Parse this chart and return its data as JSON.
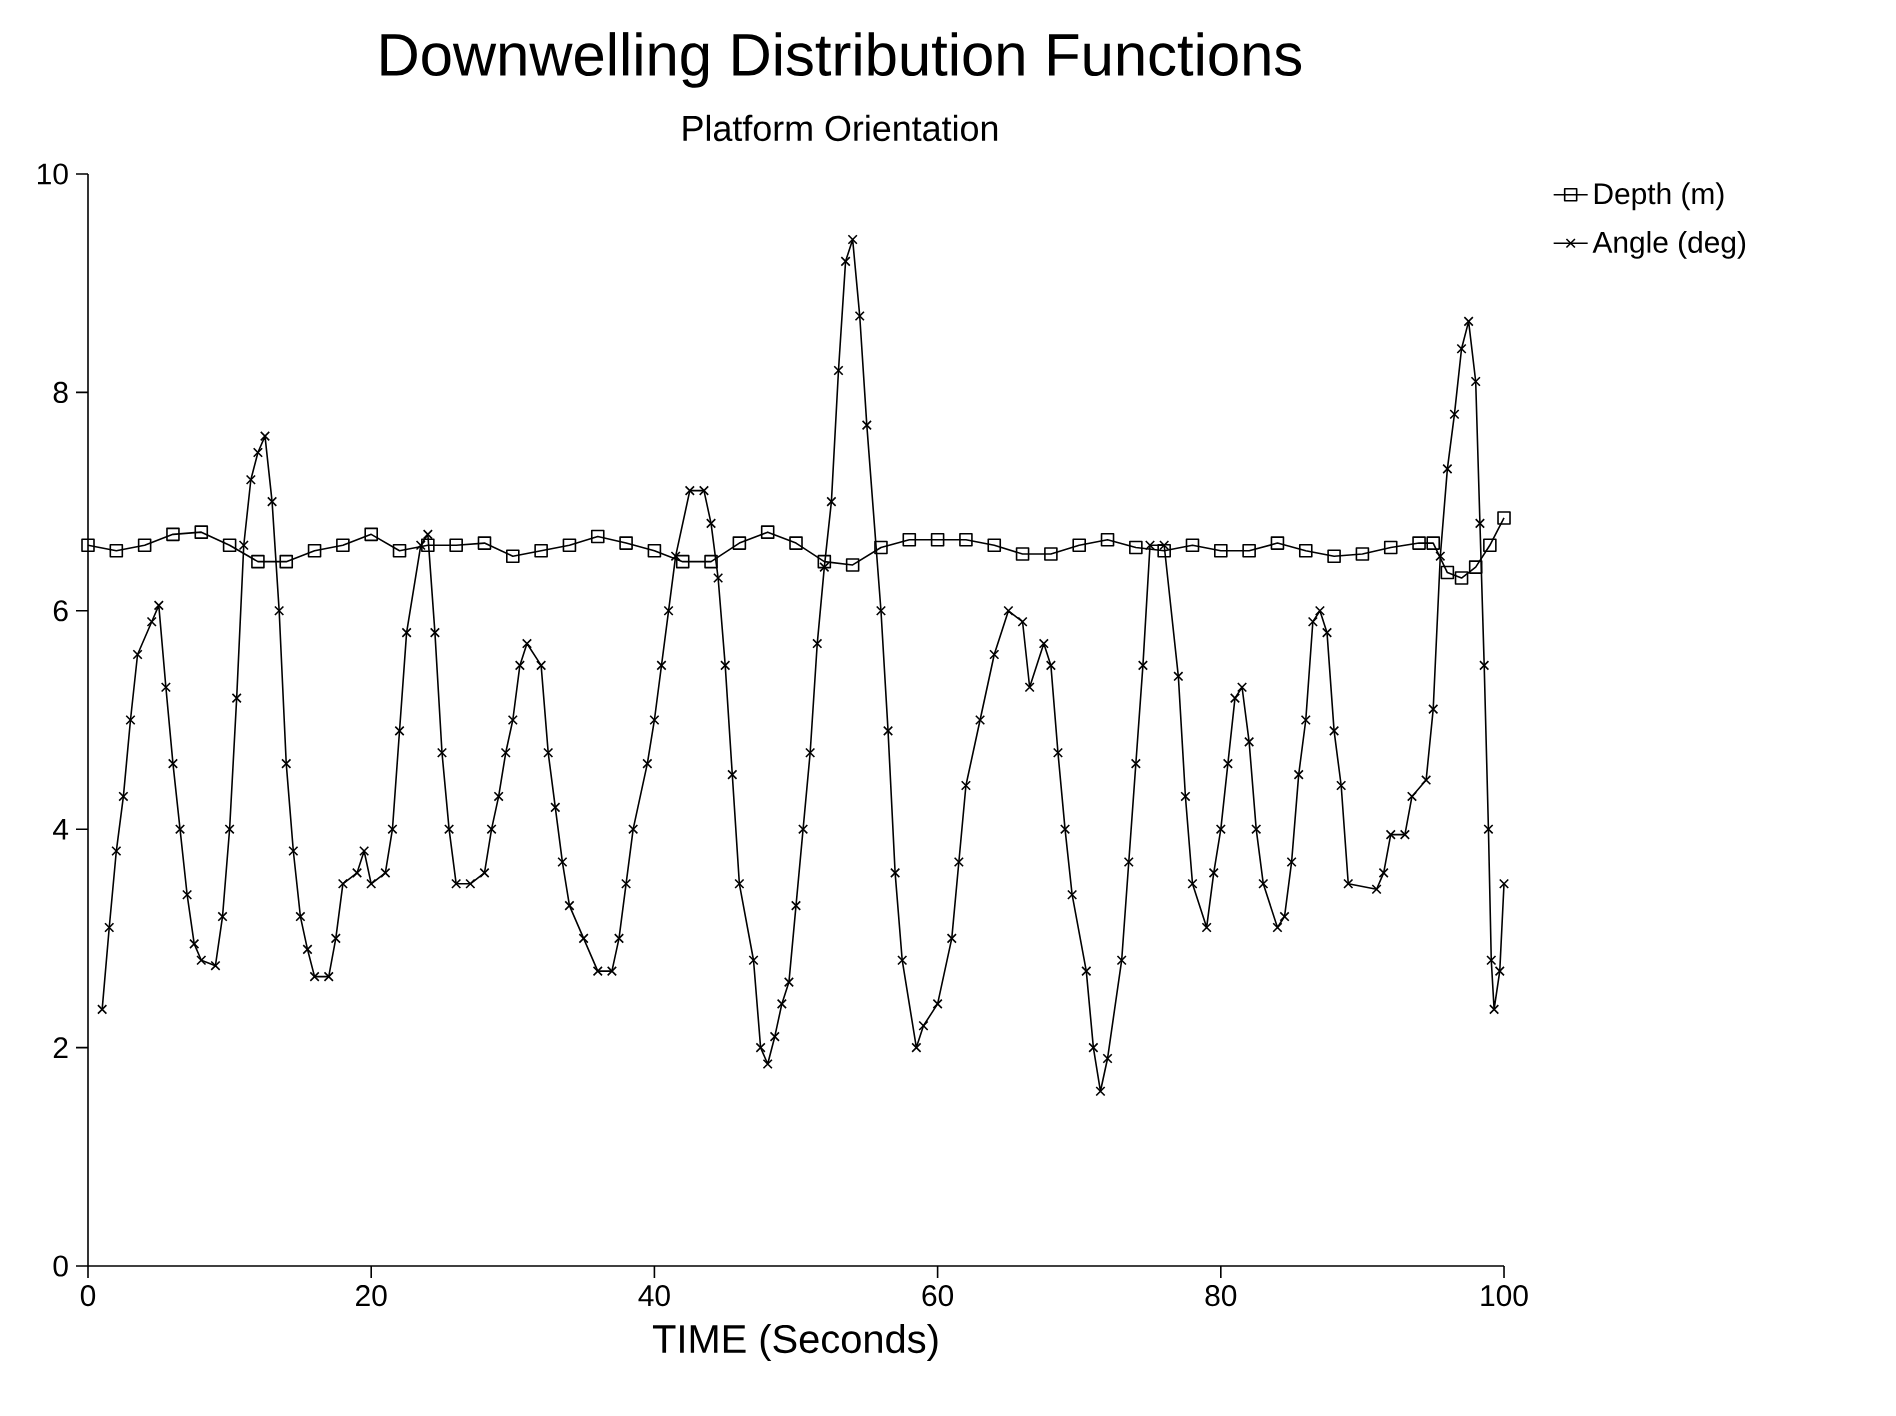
{
  "chart_data": {
    "type": "line",
    "title": "Downwelling Distribution Functions",
    "subtitle": "Platform Orientation",
    "xlabel": "TIME (Seconds)",
    "xlim": [
      0,
      100
    ],
    "ylim": [
      0,
      10
    ],
    "xticks": [
      0,
      20,
      40,
      60,
      80,
      100
    ],
    "yticks": [
      0,
      2,
      4,
      6,
      8,
      10
    ],
    "grid": false,
    "legend": "top right",
    "series": [
      {
        "name": "Depth (m)",
        "color": "#000000",
        "marker": "square",
        "x": [
          0,
          2,
          4,
          6,
          8,
          10,
          12,
          14,
          16,
          18,
          20,
          22,
          24,
          26,
          28,
          30,
          32,
          34,
          36,
          38,
          40,
          42,
          44,
          46,
          48,
          50,
          52,
          54,
          56,
          58,
          60,
          62,
          64,
          66,
          68,
          70,
          72,
          74,
          76,
          78,
          80,
          82,
          84,
          86,
          88,
          90,
          92,
          94,
          95,
          96,
          97,
          98,
          99,
          100
        ],
        "values": [
          6.6,
          6.55,
          6.6,
          6.7,
          6.72,
          6.6,
          6.45,
          6.45,
          6.55,
          6.6,
          6.7,
          6.55,
          6.6,
          6.6,
          6.62,
          6.5,
          6.55,
          6.6,
          6.68,
          6.62,
          6.55,
          6.45,
          6.45,
          6.62,
          6.72,
          6.62,
          6.45,
          6.42,
          6.58,
          6.65,
          6.65,
          6.65,
          6.6,
          6.52,
          6.52,
          6.6,
          6.65,
          6.58,
          6.55,
          6.6,
          6.55,
          6.55,
          6.62,
          6.55,
          6.5,
          6.52,
          6.58,
          6.62,
          6.62,
          6.35,
          6.3,
          6.4,
          6.6,
          6.85
        ]
      },
      {
        "name": "Angle (deg)",
        "color": "#000000",
        "marker": "cross",
        "x": [
          1,
          1.5,
          2,
          2.5,
          3,
          3.5,
          4.5,
          5,
          5.5,
          6,
          6.5,
          7,
          7.5,
          8,
          9,
          9.5,
          10,
          10.5,
          11,
          11.5,
          12,
          12.5,
          13,
          13.5,
          14,
          14.5,
          15,
          15.5,
          16,
          17,
          17.5,
          18,
          19,
          19.5,
          20,
          21,
          21.5,
          22,
          22.5,
          23.5,
          24,
          24.5,
          25,
          25.5,
          26,
          27,
          28,
          28.5,
          29,
          29.5,
          30,
          30.5,
          31,
          32,
          32.5,
          33,
          33.5,
          34,
          35,
          36,
          37,
          37.5,
          38,
          38.5,
          39.5,
          40,
          40.5,
          41,
          41.5,
          42.5,
          43.5,
          44,
          44.5,
          45,
          45.5,
          46,
          47,
          47.5,
          48,
          48.5,
          49,
          49.5,
          50,
          50.5,
          51,
          51.5,
          52,
          52.5,
          53,
          53.5,
          54,
          54.5,
          55,
          56,
          56.5,
          57,
          57.5,
          58.5,
          59,
          60,
          61,
          61.5,
          62,
          63,
          64,
          65,
          66,
          66.5,
          67.5,
          68,
          68.5,
          69,
          69.5,
          70.5,
          71,
          71.5,
          72,
          73,
          73.5,
          74,
          74.5,
          75,
          76,
          77,
          77.5,
          78,
          79,
          79.5,
          80,
          80.5,
          81,
          81.5,
          82,
          82.5,
          83,
          84,
          84.5,
          85,
          85.5,
          86,
          86.5,
          87,
          87.5,
          88,
          88.5,
          89,
          91,
          91.5,
          92,
          93,
          93.5,
          94.5,
          95,
          95.5,
          96,
          96.5,
          97,
          97.5,
          98,
          98.3,
          98.6,
          98.9,
          99.1,
          99.3,
          99.7,
          100
        ],
        "values": [
          2.35,
          3.1,
          3.8,
          4.3,
          5.0,
          5.6,
          5.9,
          6.05,
          5.3,
          4.6,
          4.0,
          3.4,
          2.95,
          2.8,
          2.75,
          3.2,
          4.0,
          5.2,
          6.6,
          7.2,
          7.45,
          7.6,
          7.0,
          6.0,
          4.6,
          3.8,
          3.2,
          2.9,
          2.65,
          2.65,
          3.0,
          3.5,
          3.6,
          3.8,
          3.5,
          3.6,
          4.0,
          4.9,
          5.8,
          6.6,
          6.7,
          5.8,
          4.7,
          4.0,
          3.5,
          3.5,
          3.6,
          4.0,
          4.3,
          4.7,
          5.0,
          5.5,
          5.7,
          5.5,
          4.7,
          4.2,
          3.7,
          3.3,
          3.0,
          2.7,
          2.7,
          3.0,
          3.5,
          4.0,
          4.6,
          5.0,
          5.5,
          6.0,
          6.5,
          7.1,
          7.1,
          6.8,
          6.3,
          5.5,
          4.5,
          3.5,
          2.8,
          2.0,
          1.85,
          2.1,
          2.4,
          2.6,
          3.3,
          4.0,
          4.7,
          5.7,
          6.4,
          7.0,
          8.2,
          9.2,
          9.4,
          8.7,
          7.7,
          6.0,
          4.9,
          3.6,
          2.8,
          2.0,
          2.2,
          2.4,
          3.0,
          3.7,
          4.4,
          5.0,
          5.6,
          6.0,
          5.9,
          5.3,
          5.7,
          5.5,
          4.7,
          4.0,
          3.4,
          2.7,
          2.0,
          1.6,
          1.9,
          2.8,
          3.7,
          4.6,
          5.5,
          6.6,
          6.6,
          5.4,
          4.3,
          3.5,
          3.1,
          3.6,
          4.0,
          4.6,
          5.2,
          5.3,
          4.8,
          4.0,
          3.5,
          3.1,
          3.2,
          3.7,
          4.5,
          5.0,
          5.9,
          6.0,
          5.8,
          4.9,
          4.4,
          3.5,
          3.45,
          3.6,
          3.95,
          3.95,
          4.3,
          4.45,
          5.1,
          6.5,
          7.3,
          7.8,
          8.4,
          8.65,
          8.1,
          6.8,
          5.5,
          4.0,
          2.8,
          2.35,
          2.7,
          3.5
        ]
      }
    ]
  }
}
